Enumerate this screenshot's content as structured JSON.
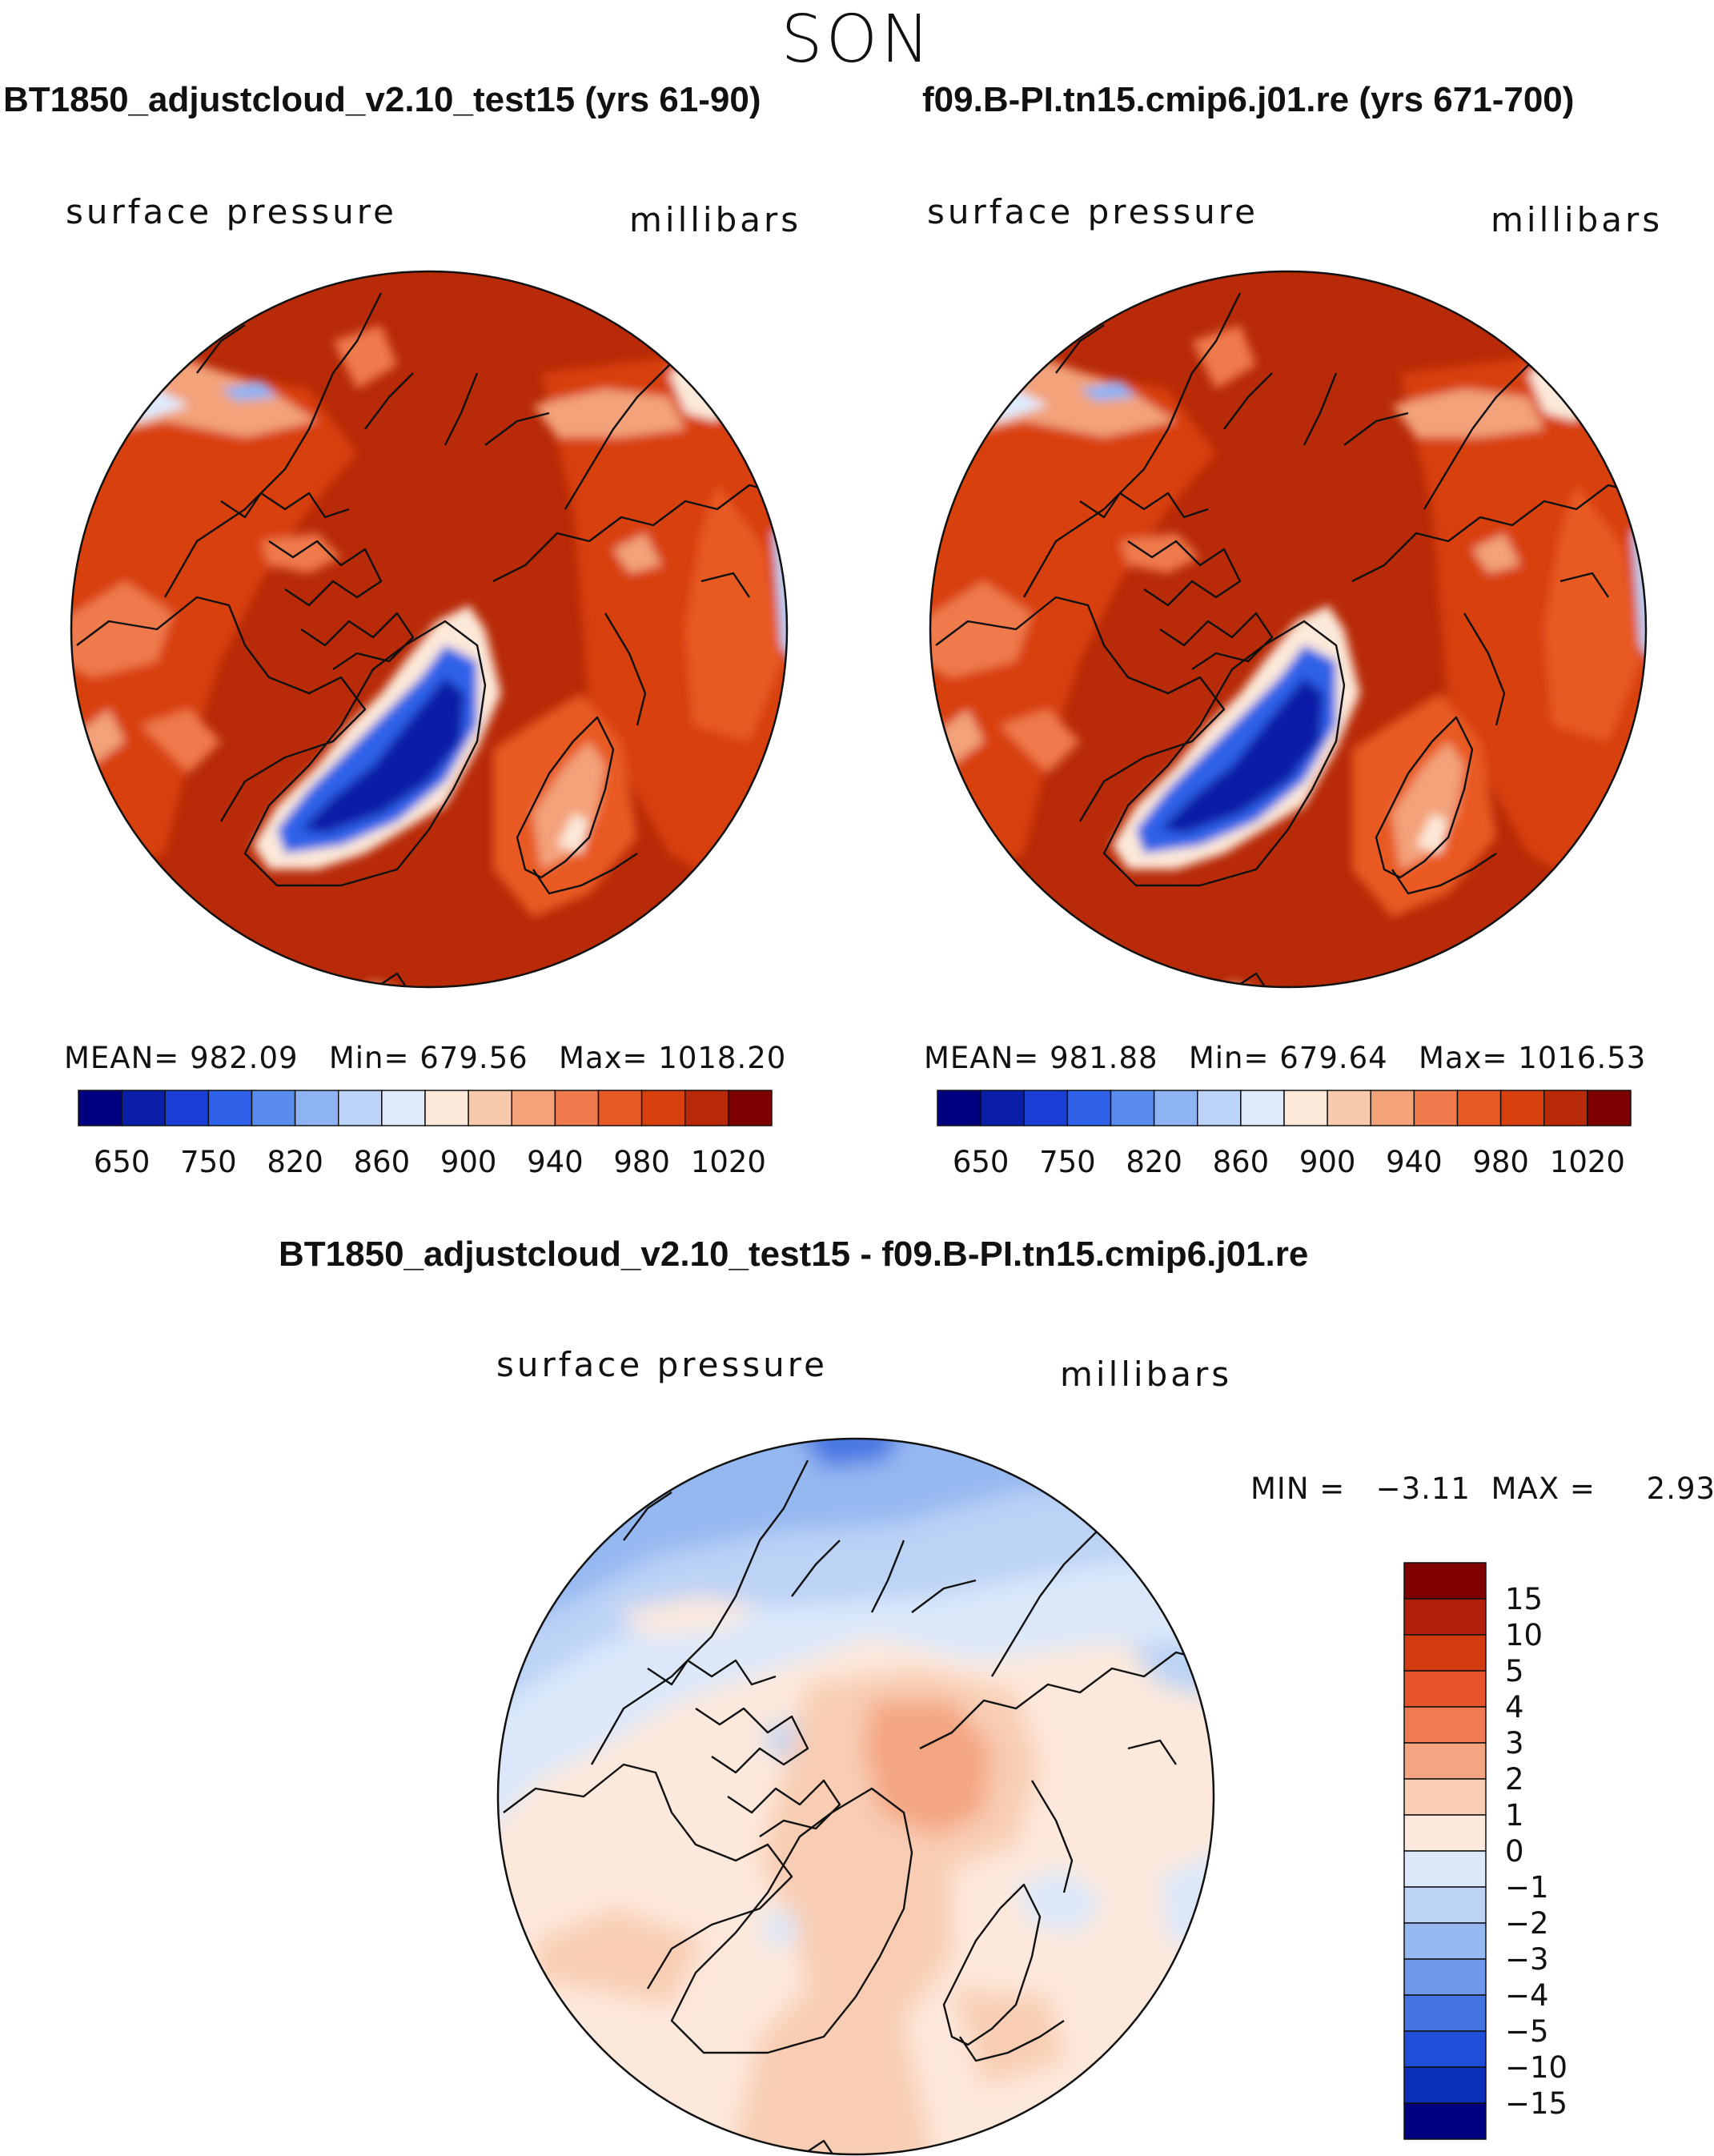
{
  "season": "SON",
  "panels": [
    {
      "title": "BT1850_adjustcloud_v2.10_test15 (yrs 61-90)",
      "variable": "surface pressure",
      "units": "millibars",
      "stats": {
        "mean_label": "MEAN=",
        "mean": "982.09",
        "min_label": "Min=",
        "min": "679.56",
        "max_label": "Max=",
        "max": "1018.20"
      }
    },
    {
      "title": "f09.B-PI.tn15.cmip6.j01.re (yrs 671-700)",
      "variable": "surface pressure",
      "units": "millibars",
      "stats": {
        "mean_label": "MEAN=",
        "mean": "981.88",
        "min_label": "Min=",
        "min": "679.64",
        "max_label": "Max=",
        "max": "1016.53"
      }
    }
  ],
  "diff_panel": {
    "title": "BT1850_adjustcloud_v2.10_test15 - f09.B-PI.tn15.cmip6.j01.re",
    "variable": "surface pressure",
    "units": "millibars",
    "min_label": "MIN =",
    "min": "−3.11",
    "max_label": "MAX =",
    "max": "2.93"
  },
  "chart_data": [
    {
      "type": "heatmap",
      "title": "BT1850_adjustcloud_v2.10_test15 (yrs 61-90)",
      "projection": "north polar stereographic",
      "variable": "surface pressure",
      "units": "millibars",
      "mean": 982.09,
      "min": 679.56,
      "max": 1018.2,
      "colorbar": {
        "orientation": "horizontal",
        "tick_labels": [
          "650",
          "750",
          "820",
          "860",
          "900",
          "940",
          "980",
          "1020"
        ],
        "colors": [
          "#000080",
          "#0a1ea8",
          "#1a3fd6",
          "#2f62e8",
          "#5a8cee",
          "#8eb3f3",
          "#bdd3f7",
          "#dfeafc",
          "#fce9d9",
          "#f8c9ac",
          "#f3a27a",
          "#ef7a4c",
          "#e85a24",
          "#d8400e",
          "#b82a08",
          "#7f0000"
        ]
      }
    },
    {
      "type": "heatmap",
      "title": "f09.B-PI.tn15.cmip6.j01.re (yrs 671-700)",
      "projection": "north polar stereographic",
      "variable": "surface pressure",
      "units": "millibars",
      "mean": 981.88,
      "min": 679.64,
      "max": 1016.53,
      "colorbar": {
        "orientation": "horizontal",
        "tick_labels": [
          "650",
          "750",
          "820",
          "860",
          "900",
          "940",
          "980",
          "1020"
        ],
        "colors": [
          "#000080",
          "#0a1ea8",
          "#1a3fd6",
          "#2f62e8",
          "#5a8cee",
          "#8eb3f3",
          "#bdd3f7",
          "#dfeafc",
          "#fce9d9",
          "#f8c9ac",
          "#f3a27a",
          "#ef7a4c",
          "#e85a24",
          "#d8400e",
          "#b82a08",
          "#7f0000"
        ]
      }
    },
    {
      "type": "heatmap",
      "title": "BT1850_adjustcloud_v2.10_test15 - f09.B-PI.tn15.cmip6.j01.re",
      "projection": "north polar stereographic",
      "variable": "surface pressure",
      "units": "millibars",
      "min": -3.11,
      "max": 2.93,
      "colorbar": {
        "orientation": "vertical",
        "tick_labels": [
          "15",
          "10",
          "5",
          "4",
          "3",
          "2",
          "1",
          "0",
          "−1",
          "−2",
          "−3",
          "−4",
          "−5",
          "−10",
          "−15"
        ],
        "colors": [
          "#800000",
          "#b0200a",
          "#d23a10",
          "#e8552a",
          "#f07a52",
          "#f4a582",
          "#f8cdb3",
          "#fde9dc",
          "#dbe8fa",
          "#bcd3f6",
          "#96b8f1",
          "#6e98ea",
          "#4474e2",
          "#1f4fd8",
          "#0a2fb8",
          "#000080"
        ]
      }
    }
  ]
}
